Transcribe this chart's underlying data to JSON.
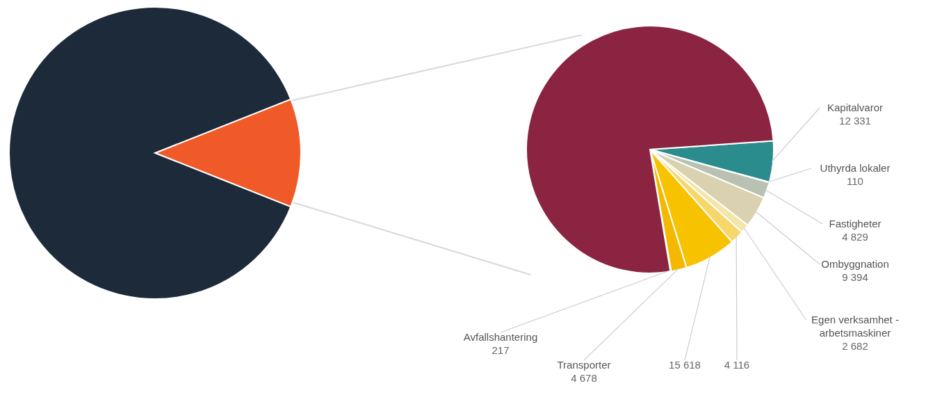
{
  "chart_data": [
    {
      "type": "pie",
      "categories": [
        null,
        null
      ],
      "values": [
        12,
        88
      ],
      "colors": [
        "#f05a28",
        "#1c2a3a"
      ]
    },
    {
      "type": "pie",
      "categories": [
        "Kapitalvaror",
        "Uthyrda lokaler",
        "Fastigheter",
        "Ombyggnation",
        "Egen verksamhet - arbetsmaskiner",
        null,
        null,
        "Transporter",
        "Avfallshantering",
        null
      ],
      "values": [
        12331,
        110,
        4829,
        9394,
        2682,
        4116,
        15618,
        4678,
        217,
        176000
      ],
      "value_labels": [
        "12 331",
        "110",
        "4 829",
        "9 394",
        "2 682",
        "4 116",
        "15 618",
        "4 678",
        "217",
        null
      ],
      "colors": [
        "#2a8c8c",
        "#c8141e",
        "#b9c2b2",
        "#d9d1b0",
        "#f2e6a8",
        "#f7d66a",
        "#f7c200",
        "#f5b800",
        "#1b2f6b",
        "#8a2440"
      ]
    }
  ]
}
